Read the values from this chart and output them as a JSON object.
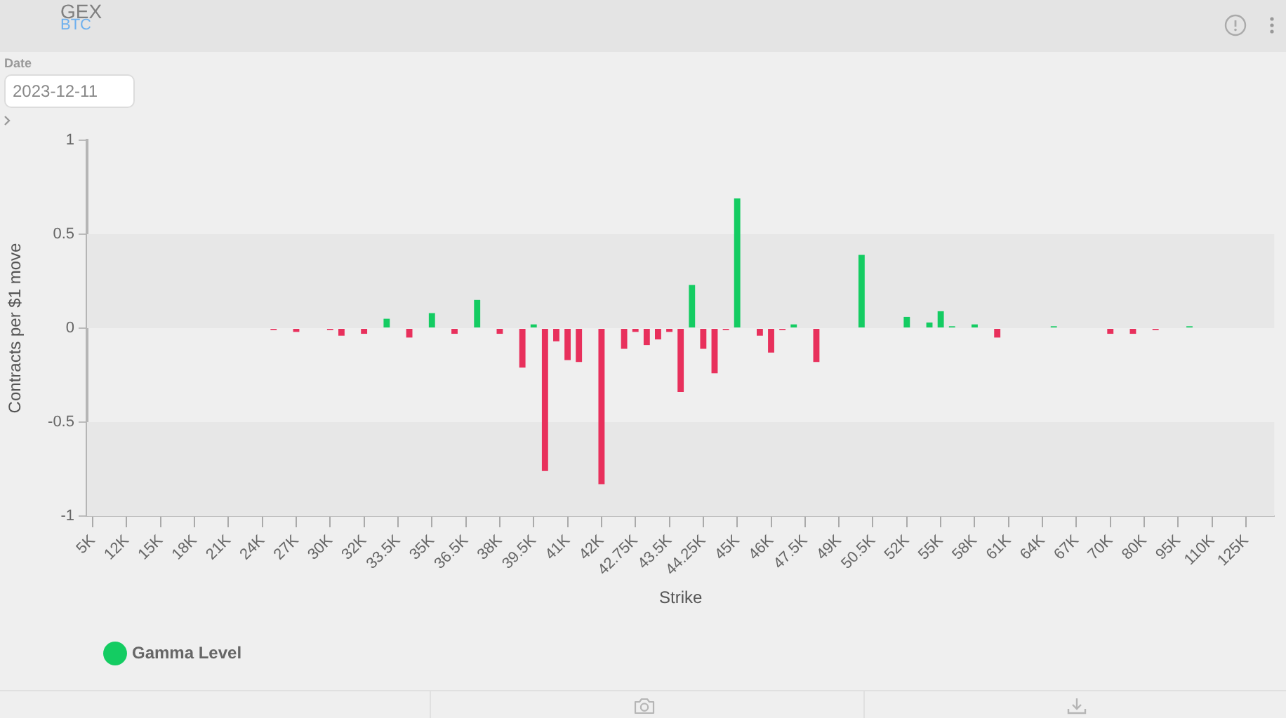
{
  "chart_data": {
    "type": "bar",
    "title": "GEX",
    "subtitle": "BTC",
    "xlabel": "Strike",
    "ylabel": "Contracts per $1 move",
    "annotations": [
      "Date",
      "2023-12-11"
    ],
    "categories": [
      "5K",
      null,
      null,
      "12K",
      null,
      null,
      "15K",
      null,
      null,
      "18K",
      null,
      null,
      "21K",
      null,
      null,
      "24K",
      null,
      null,
      "27K",
      null,
      null,
      "30K",
      null,
      null,
      "32K",
      null,
      null,
      "33.5K",
      null,
      null,
      "35K",
      null,
      null,
      "36.5K",
      null,
      null,
      "38K",
      null,
      null,
      "39.5K",
      null,
      null,
      "41K",
      null,
      null,
      "42K",
      null,
      null,
      "42.75K",
      null,
      null,
      "43.5K",
      null,
      null,
      "44.25K",
      null,
      null,
      "45K",
      null,
      null,
      "46K",
      null,
      null,
      "47.5K",
      null,
      null,
      "49K",
      null,
      null,
      "50.5K",
      null,
      null,
      "52K",
      null,
      null,
      "55K",
      null,
      null,
      "58K",
      null,
      null,
      "61K",
      null,
      null,
      "64K",
      null,
      null,
      "67K",
      null,
      null,
      "70K",
      null,
      null,
      "80K",
      null,
      null,
      "95K",
      null,
      null,
      "110K",
      null,
      null,
      "125K",
      null,
      null
    ],
    "series": [
      {
        "name": "Gamma Level",
        "color": "#14cc62",
        "values": [
          null,
          null,
          null,
          null,
          null,
          null,
          null,
          null,
          null,
          null,
          null,
          null,
          null,
          null,
          null,
          null,
          -0.01,
          null,
          -0.02,
          null,
          null,
          -0.01,
          -0.04,
          null,
          -0.03,
          null,
          0.05,
          null,
          -0.05,
          null,
          0.08,
          null,
          -0.03,
          null,
          0.15,
          null,
          -0.03,
          null,
          -0.21,
          0.02,
          -0.76,
          -0.07,
          -0.17,
          -0.18,
          null,
          -0.83,
          null,
          -0.11,
          -0.02,
          -0.09,
          -0.06,
          -0.02,
          -0.34,
          0.23,
          -0.11,
          -0.24,
          -0.01,
          0.69,
          null,
          -0.04,
          -0.13,
          -0.01,
          0.02,
          null,
          -0.18,
          null,
          null,
          null,
          0.39,
          null,
          null,
          null,
          0.06,
          null,
          0.03,
          0.09,
          0.01,
          null,
          0.02,
          null,
          -0.05,
          null,
          null,
          null,
          null,
          0.01,
          null,
          null,
          null,
          null,
          -0.03,
          null,
          -0.03,
          null,
          -0.01,
          null,
          null,
          0.01,
          null,
          null,
          null,
          null,
          null,
          null,
          null
        ],
        "colors": [
          null,
          null,
          null,
          null,
          null,
          null,
          null,
          null,
          null,
          null,
          null,
          null,
          null,
          null,
          null,
          null,
          "#e8305c",
          null,
          "#e8305c",
          null,
          null,
          "#e8305c",
          "#e8305c",
          null,
          "#e8305c",
          null,
          "#14cc62",
          null,
          "#e8305c",
          null,
          "#14cc62",
          null,
          "#e8305c",
          null,
          "#14cc62",
          null,
          "#e8305c",
          null,
          "#e8305c",
          "#14cc62",
          "#e8305c",
          "#e8305c",
          "#e8305c",
          "#e8305c",
          null,
          "#e8305c",
          null,
          "#e8305c",
          "#e8305c",
          "#e8305c",
          "#e8305c",
          "#e8305c",
          "#e8305c",
          "#14cc62",
          "#e8305c",
          "#e8305c",
          "#e8305c",
          "#14cc62",
          null,
          "#e8305c",
          "#e8305c",
          "#e8305c",
          "#14cc62",
          null,
          "#e8305c",
          null,
          null,
          null,
          "#14cc62",
          null,
          null,
          null,
          "#14cc62",
          null,
          "#14cc62",
          "#14cc62",
          "#14cc62",
          null,
          "#14cc62",
          null,
          "#e8305c",
          null,
          null,
          null,
          null,
          "#14cc62",
          null,
          null,
          null,
          null,
          "#e8305c",
          null,
          "#e8305c",
          null,
          "#e8305c",
          null,
          null,
          "#14cc62",
          null,
          null,
          null,
          null,
          null,
          null,
          null
        ]
      }
    ],
    "ylim": [
      -1,
      1
    ],
    "yticks": [
      -1,
      -0.5,
      0,
      0.5,
      1
    ],
    "bands": [
      {
        "axis": "y",
        "from": 0,
        "to": 0.5,
        "color": "#e7e7e7"
      },
      {
        "axis": "y",
        "from": -1,
        "to": -0.5,
        "color": "#e7e7e7"
      }
    ],
    "legend": "bottom left"
  }
}
